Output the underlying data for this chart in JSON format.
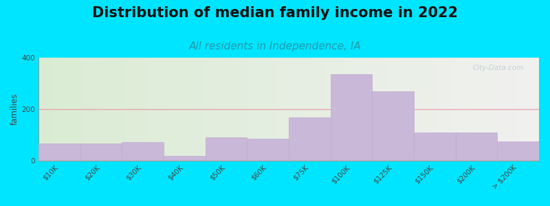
{
  "title": "Distribution of median family income in 2022",
  "subtitle": "All residents in Independence, IA",
  "ylabel": "families",
  "categories": [
    "$10K",
    "$20K",
    "$30K",
    "$40K",
    "$50K",
    "$60K",
    "$75K",
    "$100K",
    "$125K",
    "$150K",
    "$200K",
    "> $200K"
  ],
  "values": [
    68,
    68,
    72,
    20,
    90,
    85,
    168,
    335,
    270,
    110,
    110,
    75
  ],
  "bar_color": "#c9b8d8",
  "bar_edge_color": "#c0aad0",
  "ylim": [
    0,
    400
  ],
  "yticks": [
    0,
    200,
    400
  ],
  "background_outer": "#00e5ff",
  "plot_bg_left": "#daecd4",
  "plot_bg_right": "#f2f2f0",
  "grid_color": "#e8a0a8",
  "title_fontsize": 15,
  "subtitle_fontsize": 11,
  "subtitle_color": "#2299aa",
  "watermark": "City-Data.com"
}
